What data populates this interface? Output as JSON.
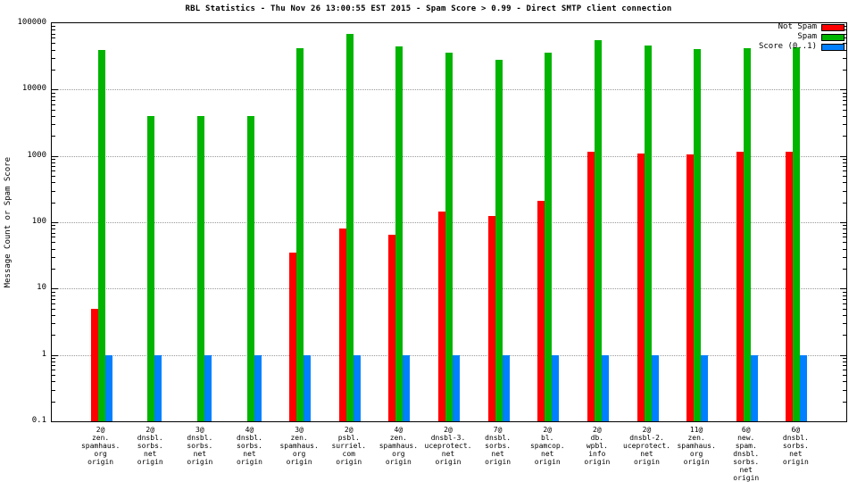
{
  "chart_data": {
    "type": "bar",
    "title": "RBL Statistics - Thu Nov 26 13:00:55 EST 2015 - Spam Score > 0.99 - Direct SMTP client connection",
    "ylabel": "Message Count or Spam Score",
    "xlabel": "",
    "yscale": "log",
    "ylim": [
      0.1,
      100000
    ],
    "ytick_labels": [
      "100000",
      "10000",
      "1000",
      "100",
      "10",
      "1",
      "0.1"
    ],
    "grid": true,
    "legend_position": "top-right",
    "categories": [
      [
        "2@",
        "zen.",
        "spamhaus.",
        "org",
        "origin"
      ],
      [
        "2@",
        "dnsbl.",
        "sorbs.",
        "net",
        "origin"
      ],
      [
        "3@",
        "dnsbl.",
        "sorbs.",
        "net",
        "origin"
      ],
      [
        "4@",
        "dnsbl.",
        "sorbs.",
        "net",
        "origin"
      ],
      [
        "3@",
        "zen.",
        "spamhaus.",
        "org",
        "origin"
      ],
      [
        "2@",
        "psbl.",
        "surriel.",
        "com",
        "origin"
      ],
      [
        "4@",
        "zen.",
        "spamhaus.",
        "org",
        "origin"
      ],
      [
        "2@",
        "dnsbl-3.",
        "uceprotect.",
        "net",
        "origin"
      ],
      [
        "7@",
        "dnsbl.",
        "sorbs.",
        "net",
        "origin"
      ],
      [
        "2@",
        "bl.",
        "spamcop.",
        "net",
        "origin"
      ],
      [
        "2@",
        "db.",
        "wpbl.",
        "info",
        "origin"
      ],
      [
        "2@",
        "dnsbl-2.",
        "uceprotect.",
        "net",
        "origin"
      ],
      [
        "11@",
        "zen.",
        "spamhaus.",
        "org",
        "origin"
      ],
      [
        "6@",
        "new.",
        "spam.",
        "dnsbl.",
        "sorbs.",
        "net",
        "origin"
      ],
      [
        "6@",
        "dnsbl.",
        "sorbs.",
        "net",
        "origin"
      ]
    ],
    "series": [
      {
        "name": "Not Spam",
        "color": "#ff0000",
        "values": [
          5,
          null,
          null,
          null,
          35,
          80,
          65,
          145,
          125,
          210,
          1150,
          1080,
          1050,
          1150,
          1150
        ]
      },
      {
        "name": "Spam",
        "color": "#00b400",
        "values": [
          40000,
          4000,
          4000,
          4000,
          42000,
          68000,
          45000,
          36000,
          28000,
          36000,
          56000,
          46000,
          41000,
          42000,
          43000
        ]
      },
      {
        "name": "Score (0..1)",
        "color": "#0080ff",
        "values": [
          1,
          1,
          1,
          1,
          1,
          1,
          1,
          1,
          1,
          1,
          1,
          1,
          1,
          1,
          1
        ]
      }
    ]
  }
}
